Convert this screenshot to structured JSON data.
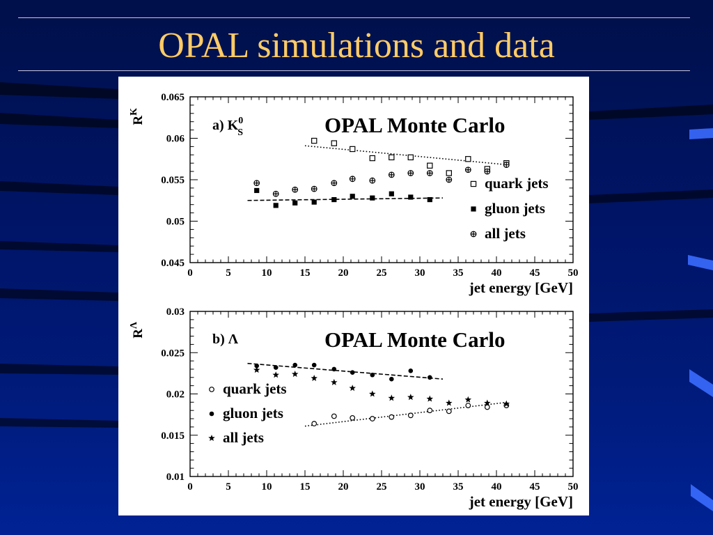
{
  "slide": {
    "title": "OPAL simulations and data",
    "colors": {
      "title": "#ffcc66",
      "background": "#001466"
    }
  },
  "chart_data": [
    {
      "type": "scatter",
      "panel_label": "a) K",
      "panel_label_sub": "S",
      "panel_label_sup": "0",
      "annotation": "OPAL Monte Carlo",
      "ylabel": "R",
      "ylabel_sup": "K",
      "xlabel": "jet energy [GeV]",
      "xlim": [
        0,
        50
      ],
      "ylim": [
        0.045,
        0.065
      ],
      "x_ticks": [
        0,
        5,
        10,
        15,
        20,
        25,
        30,
        35,
        40,
        45,
        50
      ],
      "y_ticks": [
        0.045,
        0.05,
        0.055,
        0.06,
        0.065
      ],
      "y_tick_labels": [
        "0.045",
        "0.05",
        "0.055",
        "0.06",
        "0.065"
      ],
      "legend_position": "bottom-right",
      "series": [
        {
          "name": "quark jets",
          "marker": "open-square",
          "x": [
            16.2,
            18.8,
            21.2,
            23.8,
            26.3,
            28.8,
            31.3,
            33.8,
            36.3,
            38.8,
            41.3
          ],
          "y": [
            0.0597,
            0.0594,
            0.0587,
            0.0576,
            0.0577,
            0.0577,
            0.0567,
            0.0558,
            0.0575,
            0.0563,
            0.057
          ]
        },
        {
          "name": "gluon jets",
          "marker": "filled-square",
          "x": [
            8.7,
            11.2,
            13.7,
            16.2,
            18.8,
            21.2,
            23.8,
            26.3,
            28.8,
            31.3
          ],
          "y": [
            0.0537,
            0.0519,
            0.0522,
            0.0523,
            0.0526,
            0.053,
            0.0528,
            0.0533,
            0.0529,
            0.0526
          ]
        },
        {
          "name": "all jets",
          "marker": "circle-cross",
          "x": [
            8.7,
            11.2,
            13.7,
            16.2,
            18.8,
            21.2,
            23.8,
            26.3,
            28.8,
            31.3,
            33.8,
            36.3,
            38.8,
            41.3
          ],
          "y": [
            0.0546,
            0.0533,
            0.0538,
            0.0539,
            0.0546,
            0.0551,
            0.0549,
            0.0556,
            0.0558,
            0.0558,
            0.055,
            0.0562,
            0.056,
            0.0568
          ]
        }
      ],
      "fits": [
        {
          "series": "quark jets",
          "style": "dotted",
          "x": [
            15,
            41.5
          ],
          "y": [
            0.0591,
            0.0568
          ]
        },
        {
          "series": "gluon jets",
          "style": "dashed",
          "x": [
            7.5,
            33
          ],
          "y": [
            0.0525,
            0.0528
          ]
        }
      ]
    },
    {
      "type": "scatter",
      "panel_label": "b) Λ",
      "annotation": "OPAL Monte Carlo",
      "ylabel": "R",
      "ylabel_sup": "Λ",
      "xlabel": "jet energy [GeV]",
      "xlim": [
        0,
        50
      ],
      "ylim": [
        0.01,
        0.03
      ],
      "x_ticks": [
        0,
        5,
        10,
        15,
        20,
        25,
        30,
        35,
        40,
        45,
        50
      ],
      "y_ticks": [
        0.01,
        0.015,
        0.02,
        0.025,
        0.03
      ],
      "y_tick_labels": [
        "0.01",
        "0.015",
        "0.02",
        "0.025",
        "0.03"
      ],
      "legend_position": "bottom-left",
      "series": [
        {
          "name": "quark jets",
          "marker": "open-circle",
          "x": [
            16.2,
            18.8,
            21.2,
            23.8,
            26.3,
            28.8,
            31.3,
            33.8,
            36.3,
            38.8,
            41.3
          ],
          "y": [
            0.0164,
            0.0173,
            0.0171,
            0.017,
            0.0172,
            0.0174,
            0.018,
            0.0179,
            0.0186,
            0.0184,
            0.0186
          ]
        },
        {
          "name": "gluon jets",
          "marker": "filled-circle",
          "x": [
            8.7,
            11.2,
            13.7,
            16.2,
            18.8,
            21.2,
            23.8,
            26.3,
            28.8,
            31.3
          ],
          "y": [
            0.0234,
            0.0232,
            0.0235,
            0.0235,
            0.023,
            0.0226,
            0.0223,
            0.0218,
            0.0228,
            0.022
          ]
        },
        {
          "name": "all jets",
          "marker": "star",
          "x": [
            8.7,
            11.2,
            13.7,
            16.2,
            18.8,
            21.2,
            23.8,
            26.3,
            28.8,
            31.3,
            33.8,
            36.3,
            38.8,
            41.3
          ],
          "y": [
            0.0229,
            0.0223,
            0.0224,
            0.0219,
            0.0214,
            0.0207,
            0.02,
            0.0195,
            0.0196,
            0.0194,
            0.0189,
            0.0193,
            0.0189,
            0.0188
          ]
        }
      ],
      "fits": [
        {
          "series": "gluon jets",
          "style": "dashed",
          "x": [
            7.5,
            33
          ],
          "y": [
            0.0237,
            0.0218
          ]
        },
        {
          "series": "quark jets",
          "style": "dotted",
          "x": [
            15,
            41.5
          ],
          "y": [
            0.0161,
            0.019
          ]
        }
      ]
    }
  ]
}
